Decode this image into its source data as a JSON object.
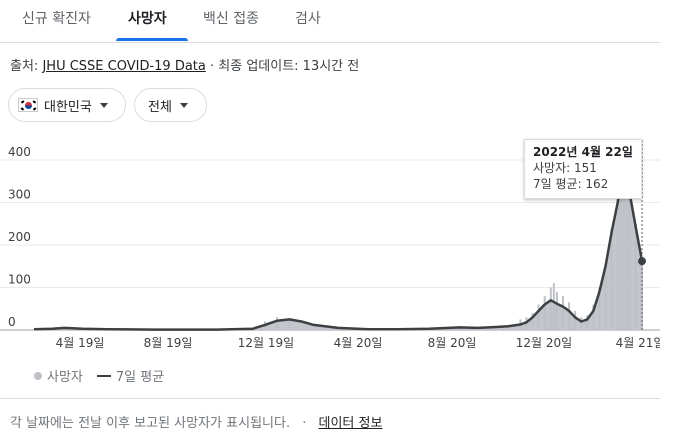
{
  "tabs": [
    {
      "label": "신규 확진자",
      "active": false
    },
    {
      "label": "사망자",
      "active": true
    },
    {
      "label": "백신 접종",
      "active": false
    },
    {
      "label": "검사",
      "active": false
    }
  ],
  "source": {
    "prefix": "출처:",
    "link_text": "JHU CSSE COVID-19 Data",
    "updated": "· 최종 업데이트: 13시간 전"
  },
  "filters": {
    "country": "대한민국",
    "country_icon": "south-korea-flag-icon",
    "range": "전체"
  },
  "tooltip": {
    "date": "2022년 4월 22일",
    "deaths": "사망자: 151",
    "average": "7일 평균: 162"
  },
  "legend": {
    "daily": "사망자",
    "average": "7일 평균"
  },
  "footer": {
    "note": "각 날짜에는 전날 이후 보고된 사망자가 표시됩니다.",
    "separator": "·",
    "data_info": "데이터 정보"
  },
  "colors": {
    "bars": "#bdc1c6",
    "average_line": "#3c4043",
    "accent": "#1a73e8"
  },
  "chart_data": {
    "type": "bar",
    "series": [
      {
        "name": "사망자",
        "type": "bar"
      },
      {
        "name": "7일 평균",
        "type": "line"
      }
    ],
    "x_ticks": [
      "4월 19일",
      "8월 19일",
      "12월 19일",
      "4월 20일",
      "8월 20일",
      "12월 20일",
      "4월 21일"
    ],
    "y_ticks": [
      "400",
      "300",
      "200",
      "100",
      "0"
    ],
    "ylim": [
      0,
      400
    ],
    "grid": true,
    "selected_point": {
      "date": "2022년 4월 22일",
      "deaths": 151,
      "average": 162
    },
    "average_points": [
      [
        0,
        2
      ],
      [
        0.03,
        3
      ],
      [
        0.05,
        5
      ],
      [
        0.08,
        3
      ],
      [
        0.12,
        2
      ],
      [
        0.2,
        1
      ],
      [
        0.3,
        1
      ],
      [
        0.36,
        3
      ],
      [
        0.38,
        12
      ],
      [
        0.4,
        22
      ],
      [
        0.42,
        25
      ],
      [
        0.44,
        20
      ],
      [
        0.46,
        12
      ],
      [
        0.5,
        5
      ],
      [
        0.55,
        2
      ],
      [
        0.6,
        2
      ],
      [
        0.65,
        3
      ],
      [
        0.7,
        6
      ],
      [
        0.73,
        5
      ],
      [
        0.76,
        7
      ],
      [
        0.78,
        9
      ],
      [
        0.8,
        13
      ],
      [
        0.81,
        18
      ],
      [
        0.82,
        30
      ],
      [
        0.83,
        45
      ],
      [
        0.84,
        60
      ],
      [
        0.85,
        70
      ],
      [
        0.86,
        62
      ],
      [
        0.87,
        55
      ],
      [
        0.88,
        45
      ],
      [
        0.89,
        30
      ],
      [
        0.9,
        20
      ],
      [
        0.91,
        25
      ],
      [
        0.92,
        45
      ],
      [
        0.93,
        90
      ],
      [
        0.94,
        150
      ],
      [
        0.95,
        230
      ],
      [
        0.96,
        300
      ],
      [
        0.965,
        340
      ],
      [
        0.97,
        330
      ],
      [
        0.98,
        320
      ],
      [
        0.99,
        240
      ],
      [
        1.0,
        162
      ]
    ],
    "bar_points": [
      [
        0.38,
        20
      ],
      [
        0.4,
        30
      ],
      [
        0.42,
        28
      ],
      [
        0.8,
        25
      ],
      [
        0.81,
        30
      ],
      [
        0.82,
        40
      ],
      [
        0.83,
        60
      ],
      [
        0.84,
        80
      ],
      [
        0.85,
        100
      ],
      [
        0.855,
        110
      ],
      [
        0.86,
        90
      ],
      [
        0.87,
        80
      ],
      [
        0.88,
        65
      ],
      [
        0.89,
        45
      ],
      [
        0.9,
        30
      ],
      [
        0.91,
        35
      ],
      [
        0.92,
        60
      ],
      [
        0.93,
        100
      ],
      [
        0.94,
        150
      ],
      [
        0.95,
        240
      ],
      [
        0.96,
        320
      ],
      [
        0.965,
        370
      ],
      [
        0.97,
        360
      ],
      [
        0.975,
        300
      ],
      [
        0.98,
        380
      ],
      [
        0.99,
        250
      ],
      [
        1.0,
        151
      ]
    ]
  }
}
